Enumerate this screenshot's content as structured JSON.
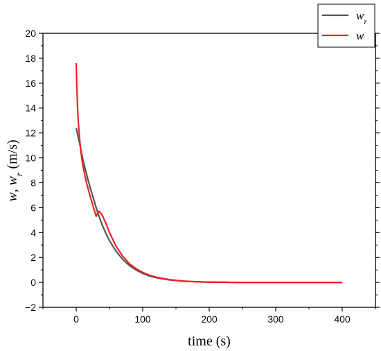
{
  "chart_data": {
    "type": "line",
    "xlabel": "time (s)",
    "ylabel": "w, w_r (m/s)",
    "xlim": [
      -50,
      450
    ],
    "ylim": [
      -2,
      20
    ],
    "xticks": [
      0,
      100,
      200,
      300,
      400
    ],
    "xtick_labels": [
      "0",
      "100",
      "200",
      "300",
      "400"
    ],
    "yticks": [
      -2,
      0,
      2,
      4,
      6,
      8,
      10,
      12,
      14,
      16,
      18,
      20
    ],
    "ytick_labels": [
      "−2",
      "0",
      "2",
      "4",
      "6",
      "8",
      "10",
      "12",
      "14",
      "16",
      "18",
      "20"
    ],
    "grid": false,
    "legend_position": "top-right",
    "series": [
      {
        "name": "w_r",
        "legend_label": "w",
        "legend_subscript": "r",
        "color": "#555555",
        "x": [
          0,
          5,
          10,
          15,
          20,
          25,
          30,
          35,
          40,
          45,
          50,
          60,
          70,
          80,
          90,
          100,
          110,
          120,
          140,
          160,
          180,
          200,
          220,
          240,
          260,
          300,
          350,
          400
        ],
        "y": [
          12.4,
          11.2,
          9.9,
          8.8,
          7.8,
          6.9,
          6.0,
          5.2,
          4.5,
          3.9,
          3.35,
          2.5,
          1.85,
          1.35,
          1.0,
          0.72,
          0.52,
          0.38,
          0.2,
          0.1,
          0.05,
          0.02,
          0.01,
          0.0,
          0.0,
          0.0,
          0.0,
          0.0
        ]
      },
      {
        "name": "w",
        "legend_label": "w",
        "legend_subscript": "",
        "color": "#ee2222",
        "x": [
          0,
          1,
          2,
          3,
          5,
          7,
          10,
          13,
          16,
          20,
          25,
          30,
          32,
          34,
          36,
          38,
          40,
          45,
          50,
          60,
          70,
          80,
          90,
          100,
          110,
          120,
          140,
          160,
          180,
          200,
          220,
          240,
          260,
          300,
          350,
          400
        ],
        "y": [
          17.6,
          15.6,
          14.2,
          13.0,
          11.6,
          10.5,
          9.4,
          8.6,
          7.9,
          7.1,
          6.2,
          5.3,
          5.55,
          5.7,
          5.62,
          5.5,
          5.3,
          4.7,
          4.0,
          2.9,
          2.1,
          1.5,
          1.1,
          0.8,
          0.58,
          0.42,
          0.22,
          0.11,
          0.05,
          0.02,
          0.01,
          0.0,
          0.0,
          0.0,
          0.0,
          0.0
        ]
      }
    ]
  }
}
